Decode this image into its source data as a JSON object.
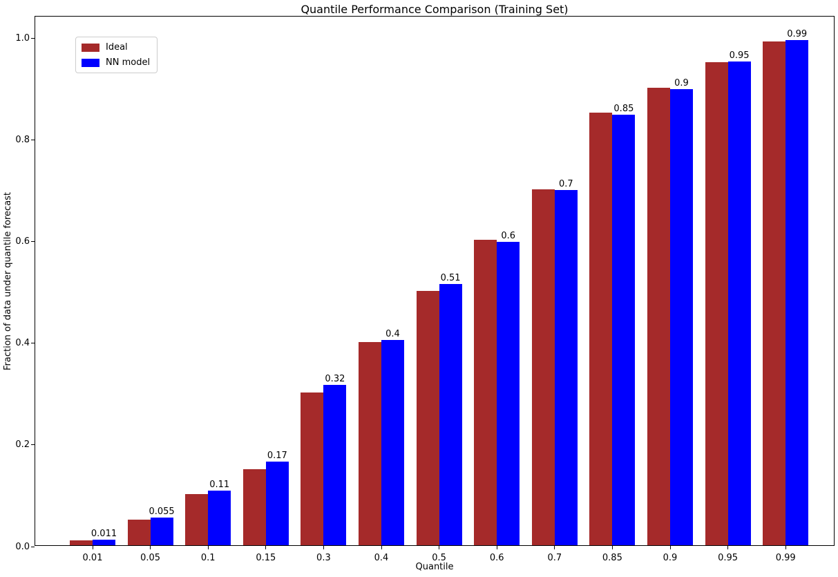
{
  "chart_data": {
    "type": "bar",
    "title": "Quantile Performance Comparison (Training Set)",
    "xlabel": "Quantile",
    "ylabel": "Fraction of data under quantile forecast",
    "categories": [
      "0.01",
      "0.05",
      "0.1",
      "0.15",
      "0.3",
      "0.4",
      "0.5",
      "0.6",
      "0.7",
      "0.85",
      "0.9",
      "0.95",
      "0.99"
    ],
    "series": [
      {
        "name": "Ideal",
        "color": "#a52a2a",
        "values": [
          0.01,
          0.05,
          0.1,
          0.15,
          0.3,
          0.4,
          0.5,
          0.6,
          0.7,
          0.85,
          0.9,
          0.95,
          0.99
        ]
      },
      {
        "name": "NN model",
        "color": "#0000ff",
        "values": [
          0.011,
          0.055,
          0.107,
          0.165,
          0.315,
          0.403,
          0.513,
          0.597,
          0.698,
          0.847,
          0.897,
          0.951,
          0.993
        ]
      }
    ],
    "bar_labels": [
      "0.011",
      "0.055",
      "0.11",
      "0.17",
      "0.32",
      "0.4",
      "0.51",
      "0.6",
      "0.7",
      "0.85",
      "0.9",
      "0.95",
      "0.99"
    ],
    "yticks": [
      "0.0",
      "0.2",
      "0.4",
      "0.6",
      "0.8",
      "1.0"
    ],
    "ytick_values": [
      0.0,
      0.2,
      0.4,
      0.6,
      0.8,
      1.0
    ],
    "ylim": [
      0,
      1.042
    ],
    "grid": false,
    "legend_position": "upper left"
  }
}
